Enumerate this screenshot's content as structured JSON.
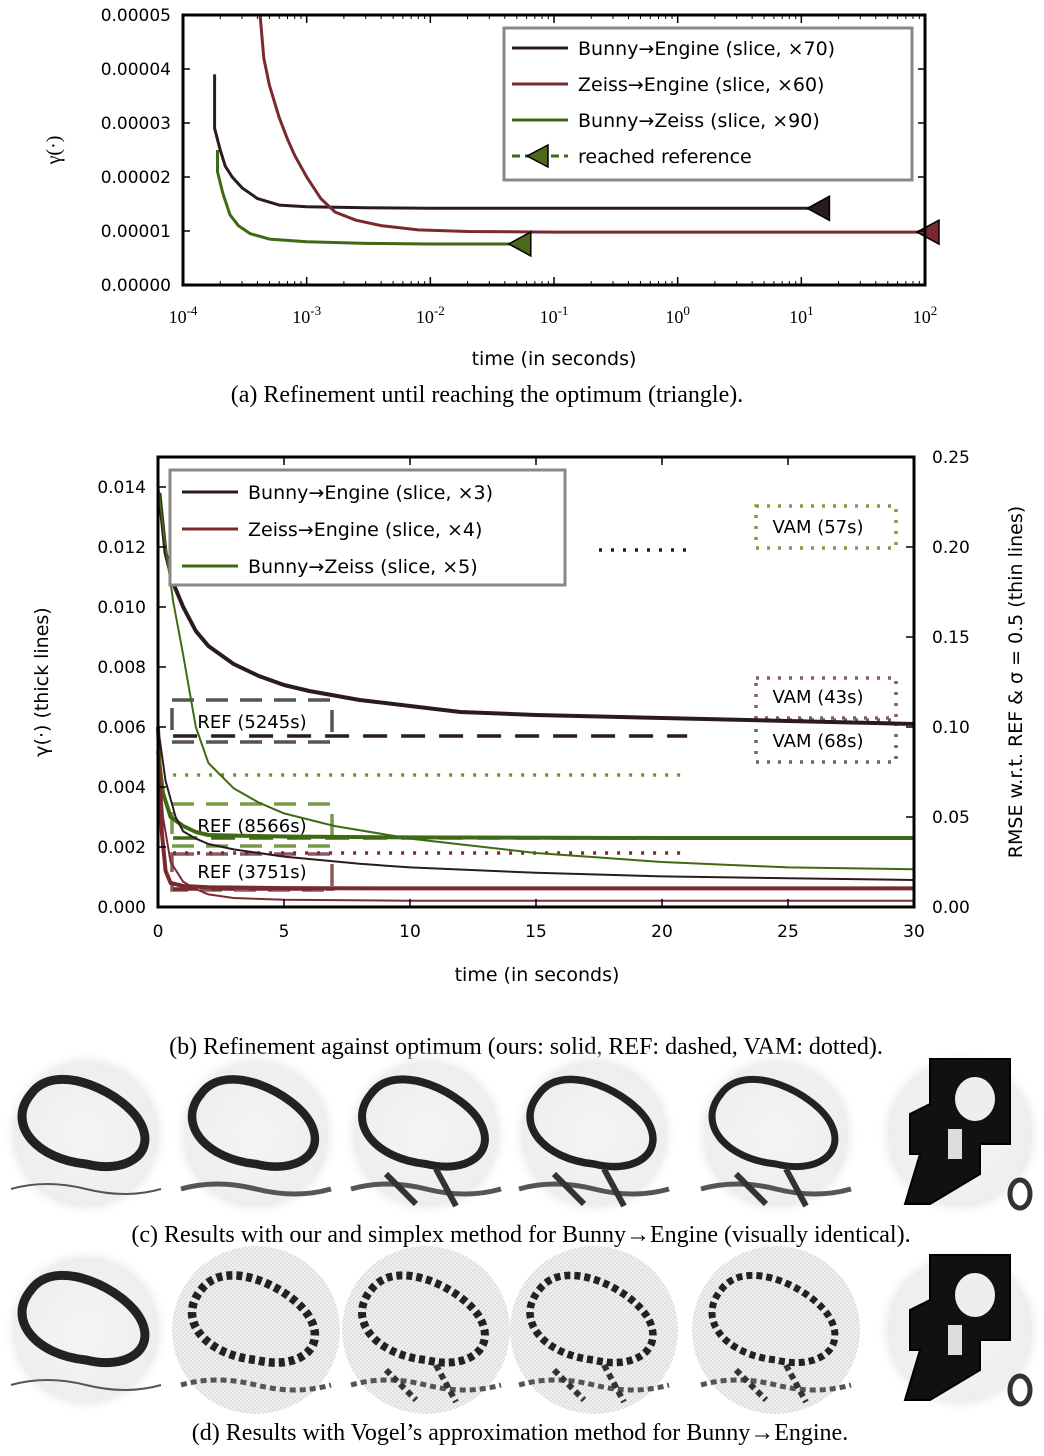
{
  "chart_data": [
    {
      "type": "line",
      "panel": "a",
      "xscale": "log",
      "xlim": [
        0.0001,
        100
      ],
      "ylim": [
        0,
        5e-05
      ],
      "xlabel": "time (in seconds)",
      "ylabel": "γ(·)",
      "xticks": [
        "10^-4",
        "10^-3",
        "10^-2",
        "10^-1",
        "10^0",
        "10^1",
        "10^2"
      ],
      "yticks": [
        "0.00000",
        "0.00001",
        "0.00002",
        "0.00003",
        "0.00004",
        "0.00005"
      ],
      "legend_position": "top-right",
      "series": [
        {
          "name": "Bunny→Engine (slice, ×70)",
          "color": "#2b1a22",
          "x": [
            0.00018,
            0.00018,
            0.0002,
            0.00022,
            0.00025,
            0.0003,
            0.0004,
            0.0006,
            0.001,
            0.003,
            0.01,
            0.1,
            1,
            13
          ],
          "y": [
            3.9e-05,
            2.9e-05,
            2.5e-05,
            2.2e-05,
            2e-05,
            1.8e-05,
            1.6e-05,
            1.48e-05,
            1.45e-05,
            1.43e-05,
            1.42e-05,
            1.42e-05,
            1.42e-05,
            1.42e-05
          ],
          "end_marker": {
            "x": 13,
            "y": 1.42e-05
          }
        },
        {
          "name": "Zeiss→Engine (slice, ×60)",
          "color": "#7a2a2e",
          "x": [
            0.00042,
            0.00045,
            0.0005,
            0.0006,
            0.0007,
            0.0008,
            0.001,
            0.0013,
            0.0017,
            0.0025,
            0.004,
            0.008,
            0.02,
            0.1,
            1,
            10,
            100
          ],
          "y": [
            5e-05,
            4.2e-05,
            3.7e-05,
            3.1e-05,
            2.7e-05,
            2.4e-05,
            2e-05,
            1.6e-05,
            1.35e-05,
            1.2e-05,
            1.1e-05,
            1.02e-05,
            9.9e-06,
            9.8e-06,
            9.8e-06,
            9.8e-06,
            9.8e-06
          ],
          "end_marker": {
            "x": 100,
            "y": 9.8e-06
          }
        },
        {
          "name": "Bunny→Zeiss (slice, ×90)",
          "color": "#3f6a14",
          "x": [
            0.00019,
            0.00019,
            0.00021,
            0.00024,
            0.00028,
            0.00035,
            0.0005,
            0.001,
            0.003,
            0.01,
            0.05
          ],
          "y": [
            2.5e-05,
            2.1e-05,
            1.7e-05,
            1.3e-05,
            1.1e-05,
            9.5e-06,
            8.5e-06,
            8e-06,
            7.7e-06,
            7.6e-06,
            7.6e-06
          ],
          "end_marker": {
            "x": 0.05,
            "y": 7.6e-06
          }
        }
      ],
      "legend_extra": "reached reference"
    },
    {
      "type": "line",
      "panel": "b",
      "xlim": [
        0,
        30
      ],
      "ylim_left": [
        0,
        0.015
      ],
      "ylim_right": [
        0,
        0.25
      ],
      "xlabel": "time (in seconds)",
      "ylabel_left": "γ(·) (thick lines)",
      "ylabel_right": "RMSE w.r.t. REF & σ = 0.5 (thin lines)",
      "xticks": [
        "0",
        "5",
        "10",
        "15",
        "20",
        "25",
        "30"
      ],
      "yticks_left": [
        "0.000",
        "0.002",
        "0.004",
        "0.006",
        "0.008",
        "0.010",
        "0.012",
        "0.014"
      ],
      "yticks_right": [
        "0.00",
        "0.05",
        "0.10",
        "0.15",
        "0.20",
        "0.25"
      ],
      "legend_position": "top-left",
      "series": [
        {
          "name": "Bunny→Engine (slice, ×3)",
          "color": "#2b1a22",
          "axis": "left",
          "width": "thick",
          "x": [
            0.05,
            0.3,
            0.6,
            1,
            1.5,
            2,
            3,
            4,
            5,
            6,
            8,
            10,
            12,
            15,
            20,
            25,
            30
          ],
          "y": [
            0.0138,
            0.0118,
            0.0108,
            0.01,
            0.0092,
            0.0087,
            0.0081,
            0.0077,
            0.0074,
            0.0072,
            0.0069,
            0.0067,
            0.0065,
            0.0064,
            0.0063,
            0.0062,
            0.0061
          ]
        },
        {
          "name": "Zeiss→Engine (slice, ×4)",
          "color": "#7a2a2e",
          "axis": "left",
          "width": "thick",
          "x": [
            0,
            0.15,
            0.3,
            0.5,
            1,
            2,
            5,
            10,
            30
          ],
          "y": [
            0.006,
            0.0025,
            0.0012,
            0.0008,
            0.0007,
            0.00066,
            0.00063,
            0.00062,
            0.00062
          ]
        },
        {
          "name": "Bunny→Zeiss (slice, ×5)",
          "color": "#3f6a14",
          "axis": "left",
          "width": "thick",
          "x": [
            0,
            0.2,
            0.5,
            1,
            1.5,
            2,
            3,
            5,
            10,
            20,
            30
          ],
          "y": [
            0.0052,
            0.0038,
            0.003,
            0.0027,
            0.0025,
            0.0024,
            0.00238,
            0.00235,
            0.00232,
            0.0023,
            0.0023
          ]
        },
        {
          "name": "",
          "color": "#2b1a22",
          "axis": "right",
          "width": "thin",
          "x": [
            0,
            0.3,
            0.7,
            1,
            1.5,
            2,
            3,
            5,
            8,
            10,
            15,
            20,
            25,
            30
          ],
          "y": [
            0.1,
            0.07,
            0.05,
            0.042,
            0.038,
            0.035,
            0.032,
            0.028,
            0.024,
            0.022,
            0.019,
            0.017,
            0.016,
            0.015
          ]
        },
        {
          "name": "",
          "color": "#7a2a2e",
          "axis": "right",
          "width": "thin",
          "x": [
            0,
            0.2,
            0.5,
            1,
            1.5,
            2,
            3,
            5,
            10,
            30
          ],
          "y": [
            0.09,
            0.05,
            0.025,
            0.014,
            0.01,
            0.007,
            0.005,
            0.004,
            0.0035,
            0.0035
          ]
        },
        {
          "name": "",
          "color": "#3f6a14",
          "axis": "right",
          "width": "thin",
          "x": [
            0,
            0.3,
            0.6,
            1,
            1.5,
            2,
            3,
            4,
            5,
            7,
            10,
            15,
            20,
            25,
            30
          ],
          "y": [
            0.235,
            0.2,
            0.17,
            0.14,
            0.1,
            0.08,
            0.066,
            0.058,
            0.052,
            0.045,
            0.038,
            0.03,
            0.025,
            0.022,
            0.021
          ]
        }
      ],
      "reference_lines": [
        {
          "label": "REF (5245s)",
          "axis": "left",
          "y": 0.0057,
          "x": [
            0.6,
            21
          ],
          "style": "dashed",
          "color": "#2b1a22",
          "box_color": "#555555"
        },
        {
          "label": "REF (8566s)",
          "axis": "left",
          "y": 0.0023,
          "x": [
            0.6,
            21
          ],
          "style": "dashed",
          "color": "#3f6a14",
          "box_color": "#7a9a4a"
        },
        {
          "label": "REF (3751s)",
          "axis": "left",
          "y": 0.0006,
          "x": [
            0.6,
            7
          ],
          "style": "dashed",
          "color": "#7a2a2e",
          "box_color": "#8a5a5e"
        }
      ],
      "vam_lines": [
        {
          "label": "VAM (57s)",
          "axis": "left",
          "y": 0.0119,
          "x": [
            17.5,
            21
          ],
          "color": "#2b1a22",
          "box_color": "#8a9a3a"
        },
        {
          "label": "VAM (43s)",
          "axis": "left",
          "y": 0.0044,
          "x": [
            0.6,
            21
          ],
          "color": "#7a8a2a",
          "box_color": "#8a5a5e"
        },
        {
          "label": "VAM (68s)",
          "axis": "left",
          "y": 0.0018,
          "x": [
            0.6,
            21
          ],
          "color": "#7a2a2e",
          "box_color": "#666666"
        }
      ]
    }
  ],
  "captions": {
    "a": "(a) Refinement until reaching the optimum (triangle).",
    "b": "(b) Refinement against optimum (ours: solid, REF: dashed, VAM: dotted).",
    "c": "(c) Results with our and simplex method for Bunny→Engine (visually identical).",
    "d": "(d)  Results with Vogel’s approximation method for Bunny→Engine."
  },
  "image_rows": {
    "c": {
      "count": 6
    },
    "d": {
      "count": 6
    }
  }
}
